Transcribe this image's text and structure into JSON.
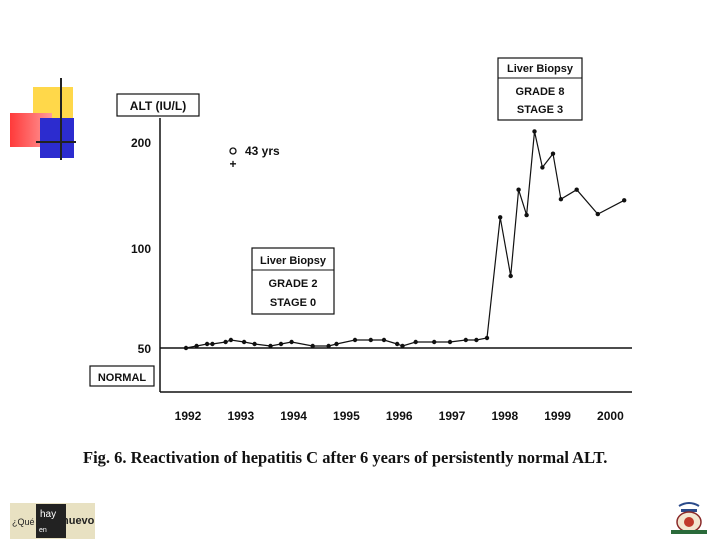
{
  "chart_data": {
    "type": "line",
    "ylabel": "ALT (IU/L)",
    "y_ticks": [
      "200",
      "100",
      "50"
    ],
    "x_ticks": [
      "1992",
      "1993",
      "1994",
      "1995",
      "1996",
      "1997",
      "1998",
      "1999",
      "2000"
    ],
    "normal_line": {
      "value": 50,
      "label": "NORMAL"
    },
    "series": [
      {
        "x": [
          1992.0,
          1992.2,
          1992.4,
          1992.5,
          1992.75,
          1992.85,
          1993.1,
          1993.3,
          1993.6,
          1993.8,
          1994.0,
          1994.4,
          1994.7,
          1994.85,
          1995.2,
          1995.5,
          1995.75,
          1996.0,
          1996.1,
          1996.35,
          1996.7,
          1997.0,
          1997.3,
          1997.5,
          1997.7,
          1997.95,
          1998.15,
          1998.3,
          1998.45,
          1998.6,
          1998.75,
          1998.95,
          1999.1,
          1999.4,
          1999.8,
          2000.3
        ],
        "y": [
          50,
          51,
          52,
          52,
          53,
          54,
          53,
          52,
          51,
          52,
          53,
          51,
          51,
          52,
          54,
          54,
          54,
          52,
          51,
          53,
          53,
          53,
          54,
          54,
          55,
          129,
          86,
          155,
          131,
          210,
          176,
          189,
          146,
          155,
          132,
          145
        ]
      }
    ],
    "annotations": [
      {
        "marker": "o",
        "text": "43 yrs"
      },
      {
        "marker": "+"
      }
    ],
    "biopsy_boxes": [
      {
        "title": "Liver Biopsy",
        "grade": "GRADE 2",
        "stage": "STAGE 0"
      },
      {
        "title": "Liver Biopsy",
        "grade": "GRADE 8",
        "stage": "STAGE 3"
      }
    ]
  },
  "caption": "Fig. 6. Reactivation of hepatitis C after 6 years of persistently normal ALT.",
  "footer": {
    "logo_left": {
      "w1": "¿Qué",
      "w2": "hay",
      "w3": "nuevo",
      "w4": "en"
    }
  }
}
